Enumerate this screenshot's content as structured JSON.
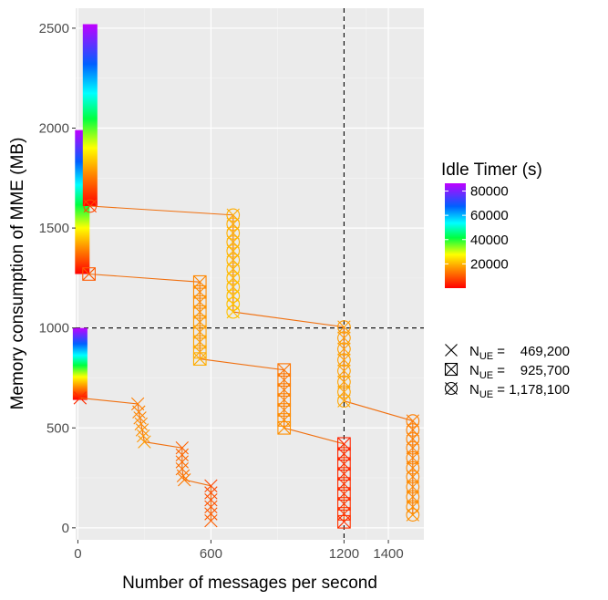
{
  "chart_data": {
    "type": "scatter",
    "xlabel": "Number of messages per second",
    "ylabel": "Memory consumption of MME (MB)",
    "xlim": [
      -10,
      1560
    ],
    "ylim": [
      -60,
      2600
    ],
    "x_ticks": [
      0,
      600,
      1200,
      1400
    ],
    "x_tick_labels": [
      "0",
      "600",
      "1200",
      "1400"
    ],
    "y_ticks": [
      0,
      500,
      1000,
      1500,
      2000,
      2500
    ],
    "y_tick_labels": [
      "0",
      "500",
      "1000",
      "1500",
      "2000",
      "2500"
    ],
    "grid": true,
    "reference_lines": [
      {
        "orientation": "vertical",
        "value": 1200,
        "style": "dashed"
      },
      {
        "orientation": "horizontal",
        "value": 1000,
        "style": "dashed"
      }
    ],
    "legend_color": {
      "title": "Idle Timer (s)",
      "placement": "right",
      "ticks": [
        20000,
        40000,
        60000,
        80000
      ],
      "tick_labels": [
        "20000",
        "40000",
        "60000",
        "80000"
      ],
      "range": [
        0,
        86400
      ]
    },
    "legend_shape": {
      "placement": "right",
      "entries": [
        {
          "shape": "cross",
          "prefix": "N",
          "sub": "UE",
          "value": " =    469,200"
        },
        {
          "shape": "boxed-cross",
          "prefix": "N",
          "sub": "UE",
          "value": " =    925,700"
        },
        {
          "shape": "circled-cross",
          "prefix": "N",
          "sub": "UE",
          "value": " = 1,178,100"
        }
      ]
    },
    "gradient_columns": [
      {
        "x": 10,
        "y_from": 640,
        "y_to": 1000
      },
      {
        "x": 20,
        "y_from": 1270,
        "y_to": 1990
      },
      {
        "x": 55,
        "y_from": 1610,
        "y_to": 2520
      }
    ],
    "series": [
      {
        "shape": "cross",
        "line_color": "#f07010",
        "points": [
          {
            "x": 10,
            "y": 650,
            "timer": 5000
          },
          {
            "x": 270,
            "y": 620,
            "timer": 14000
          },
          {
            "x": 275,
            "y": 580,
            "timer": 14500
          },
          {
            "x": 280,
            "y": 550,
            "timer": 15000
          },
          {
            "x": 285,
            "y": 520,
            "timer": 15500
          },
          {
            "x": 290,
            "y": 490,
            "timer": 16000
          },
          {
            "x": 295,
            "y": 460,
            "timer": 16500
          },
          {
            "x": 300,
            "y": 430,
            "timer": 17000
          },
          {
            "x": 470,
            "y": 400,
            "timer": 11000
          },
          {
            "x": 470,
            "y": 365,
            "timer": 11500
          },
          {
            "x": 470,
            "y": 330,
            "timer": 12000
          },
          {
            "x": 470,
            "y": 295,
            "timer": 12500
          },
          {
            "x": 475,
            "y": 260,
            "timer": 13000
          },
          {
            "x": 480,
            "y": 240,
            "timer": 13500
          },
          {
            "x": 600,
            "y": 210,
            "timer": 8000
          },
          {
            "x": 600,
            "y": 175,
            "timer": 8500
          },
          {
            "x": 600,
            "y": 140,
            "timer": 9000
          },
          {
            "x": 600,
            "y": 105,
            "timer": 9500
          },
          {
            "x": 600,
            "y": 70,
            "timer": 10000
          },
          {
            "x": 600,
            "y": 35,
            "timer": 10500
          }
        ]
      },
      {
        "shape": "boxed-cross",
        "line_color": "#f07010",
        "points": [
          {
            "x": 50,
            "y": 1270,
            "timer": 10000
          },
          {
            "x": 550,
            "y": 1230,
            "timer": 15000
          },
          {
            "x": 550,
            "y": 1180,
            "timer": 15500
          },
          {
            "x": 550,
            "y": 1130,
            "timer": 16000
          },
          {
            "x": 550,
            "y": 1080,
            "timer": 16500
          },
          {
            "x": 550,
            "y": 1030,
            "timer": 17000
          },
          {
            "x": 550,
            "y": 980,
            "timer": 17500
          },
          {
            "x": 550,
            "y": 930,
            "timer": 18000
          },
          {
            "x": 550,
            "y": 880,
            "timer": 18500
          },
          {
            "x": 550,
            "y": 845,
            "timer": 19000
          },
          {
            "x": 930,
            "y": 790,
            "timer": 13000
          },
          {
            "x": 930,
            "y": 740,
            "timer": 13500
          },
          {
            "x": 930,
            "y": 690,
            "timer": 14000
          },
          {
            "x": 930,
            "y": 640,
            "timer": 14500
          },
          {
            "x": 930,
            "y": 590,
            "timer": 15000
          },
          {
            "x": 930,
            "y": 540,
            "timer": 15500
          },
          {
            "x": 930,
            "y": 500,
            "timer": 16000
          },
          {
            "x": 1200,
            "y": 420,
            "timer": 4000
          },
          {
            "x": 1200,
            "y": 370,
            "timer": 4200
          },
          {
            "x": 1200,
            "y": 320,
            "timer": 4400
          },
          {
            "x": 1200,
            "y": 270,
            "timer": 4600
          },
          {
            "x": 1200,
            "y": 220,
            "timer": 4800
          },
          {
            "x": 1200,
            "y": 170,
            "timer": 5000
          },
          {
            "x": 1200,
            "y": 120,
            "timer": 5200
          },
          {
            "x": 1200,
            "y": 70,
            "timer": 5400
          },
          {
            "x": 1200,
            "y": 30,
            "timer": 5600
          }
        ]
      },
      {
        "shape": "circled-cross",
        "line_color": "#f07010",
        "points": [
          {
            "x": 55,
            "y": 1610,
            "timer": 8000
          },
          {
            "x": 700,
            "y": 1565,
            "timer": 19000
          },
          {
            "x": 700,
            "y": 1520,
            "timer": 19200
          },
          {
            "x": 700,
            "y": 1475,
            "timer": 19400
          },
          {
            "x": 700,
            "y": 1430,
            "timer": 19600
          },
          {
            "x": 700,
            "y": 1385,
            "timer": 19800
          },
          {
            "x": 700,
            "y": 1340,
            "timer": 20000
          },
          {
            "x": 700,
            "y": 1295,
            "timer": 20200
          },
          {
            "x": 700,
            "y": 1250,
            "timer": 20400
          },
          {
            "x": 700,
            "y": 1205,
            "timer": 20600
          },
          {
            "x": 700,
            "y": 1160,
            "timer": 20800
          },
          {
            "x": 700,
            "y": 1120,
            "timer": 21000
          },
          {
            "x": 700,
            "y": 1080,
            "timer": 21200
          },
          {
            "x": 1200,
            "y": 1005,
            "timer": 17000
          },
          {
            "x": 1200,
            "y": 950,
            "timer": 17200
          },
          {
            "x": 1200,
            "y": 895,
            "timer": 17400
          },
          {
            "x": 1200,
            "y": 840,
            "timer": 17600
          },
          {
            "x": 1200,
            "y": 785,
            "timer": 17800
          },
          {
            "x": 1200,
            "y": 730,
            "timer": 18000
          },
          {
            "x": 1200,
            "y": 680,
            "timer": 18200
          },
          {
            "x": 1200,
            "y": 635,
            "timer": 18400
          },
          {
            "x": 1510,
            "y": 535,
            "timer": 14000
          },
          {
            "x": 1510,
            "y": 490,
            "timer": 14200
          },
          {
            "x": 1510,
            "y": 445,
            "timer": 14400
          },
          {
            "x": 1510,
            "y": 400,
            "timer": 14600
          },
          {
            "x": 1510,
            "y": 350,
            "timer": 14800
          },
          {
            "x": 1510,
            "y": 300,
            "timer": 15000
          },
          {
            "x": 1510,
            "y": 255,
            "timer": 15200
          },
          {
            "x": 1510,
            "y": 205,
            "timer": 15400
          },
          {
            "x": 1510,
            "y": 155,
            "timer": 15600
          },
          {
            "x": 1510,
            "y": 105,
            "timer": 15800
          },
          {
            "x": 1510,
            "y": 65,
            "timer": 16000
          }
        ]
      }
    ]
  }
}
